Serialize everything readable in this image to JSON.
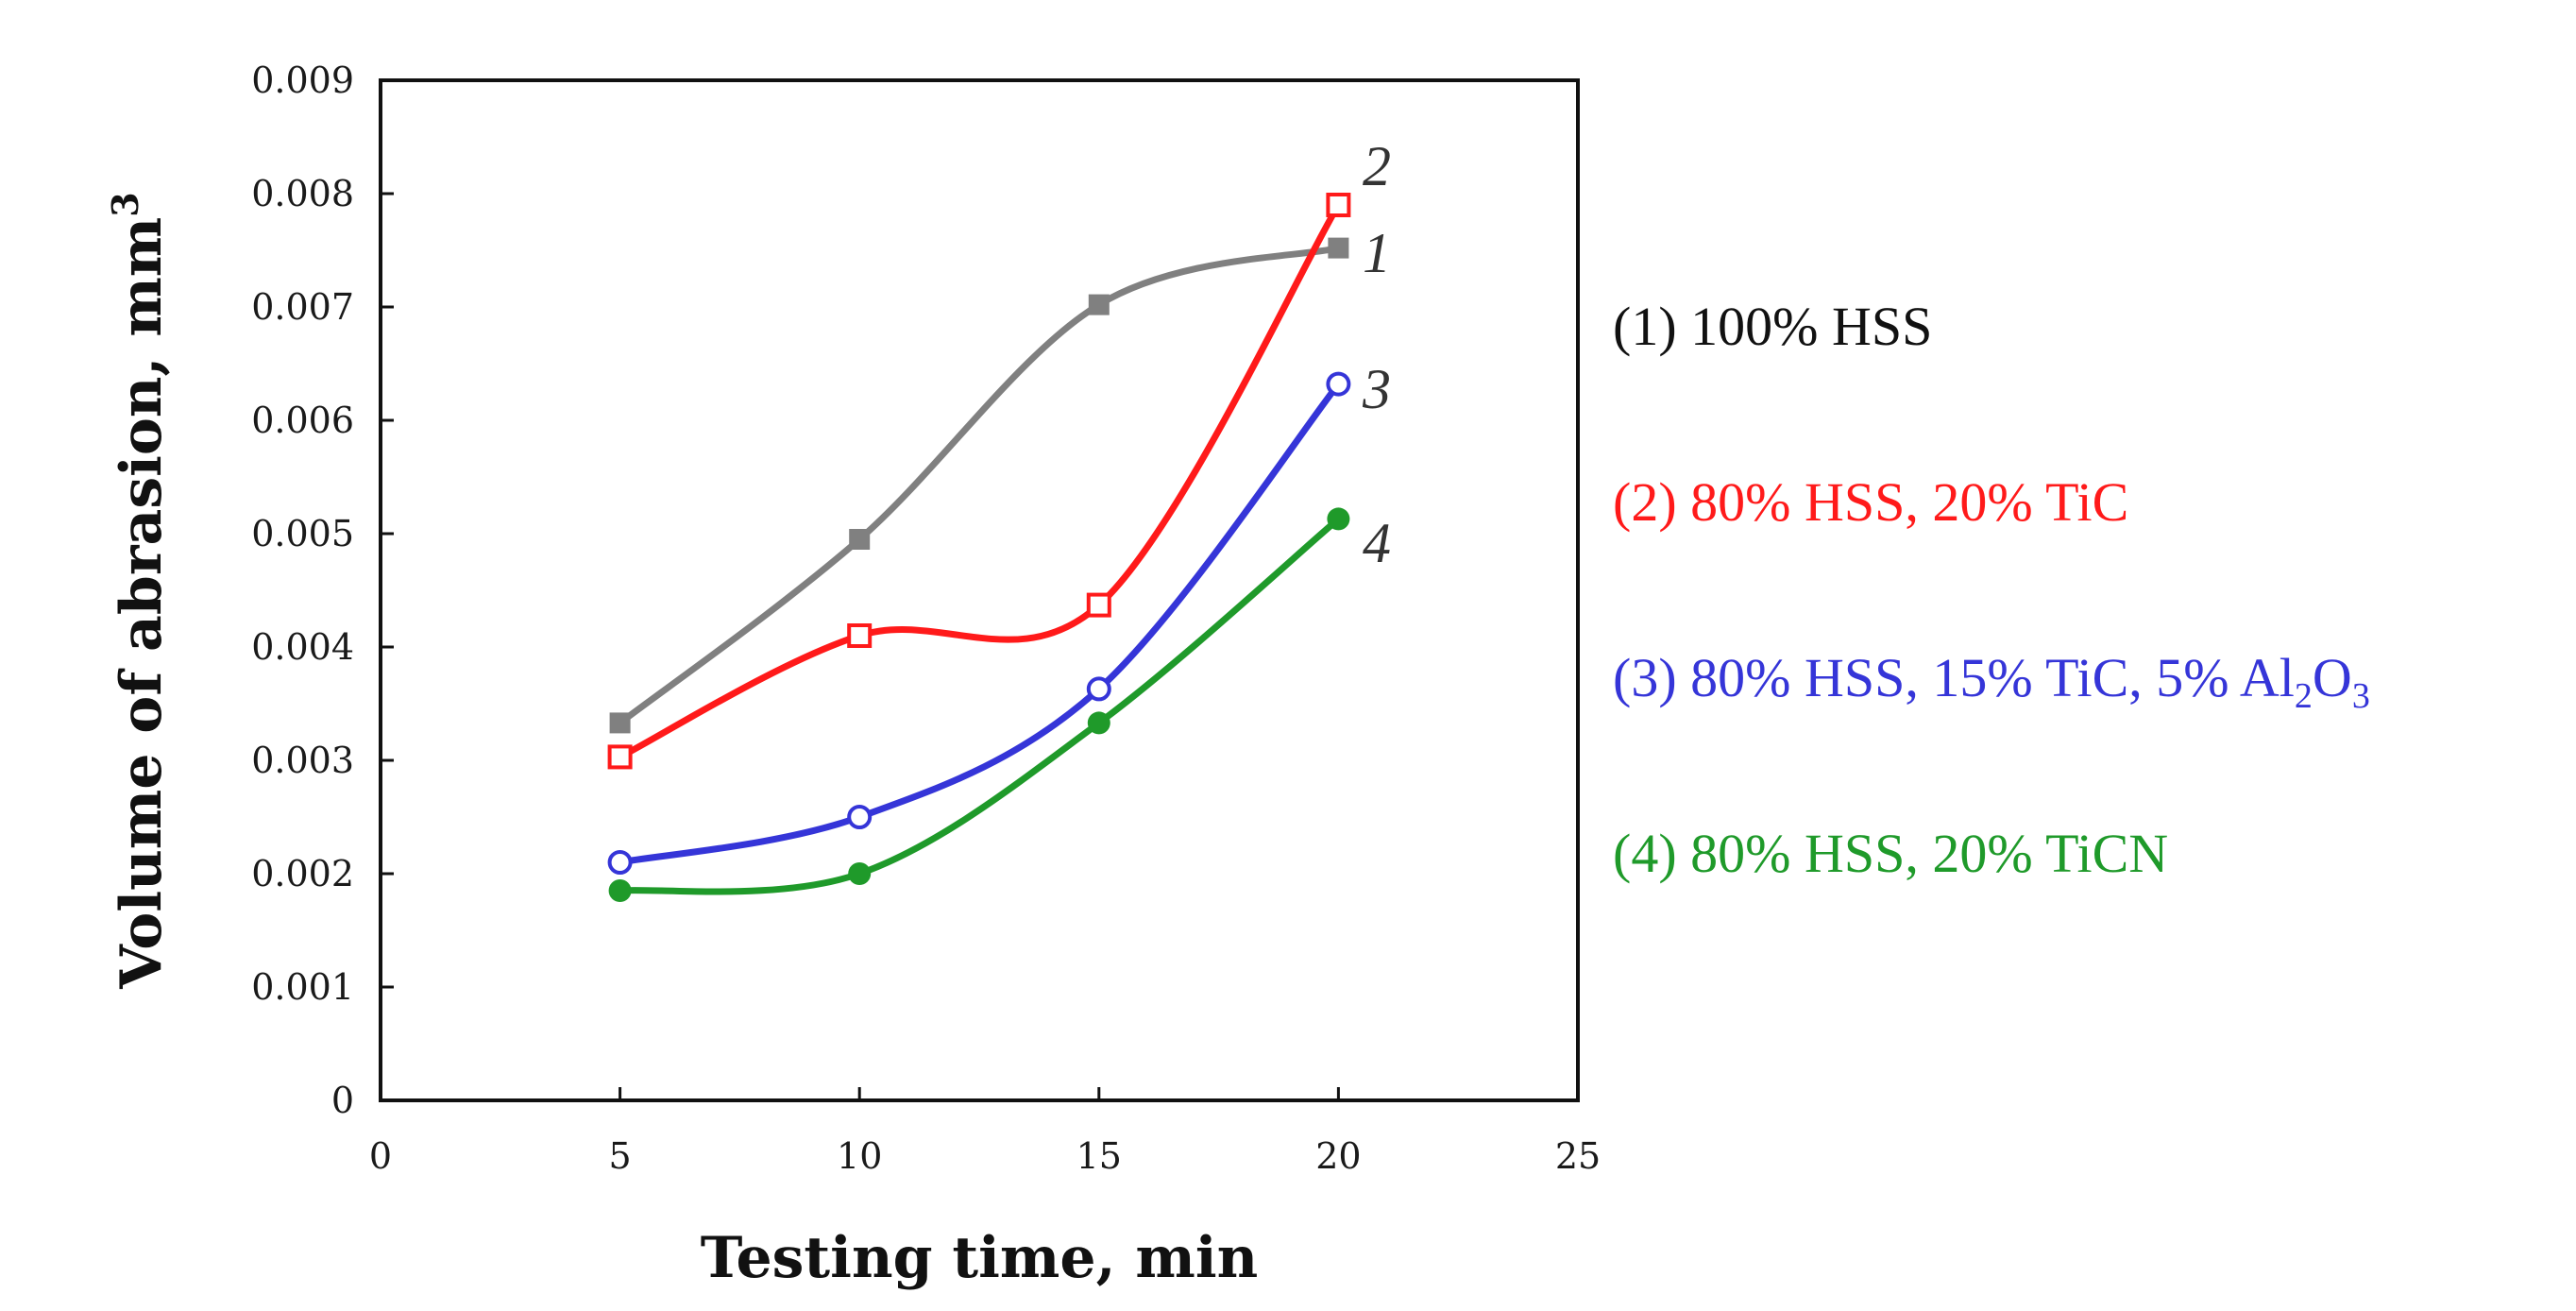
{
  "chart_data": {
    "type": "line",
    "title": "",
    "xlabel": "Testing time, min",
    "ylabel": "Volume of abrasion, mm",
    "ylabel_superscript": "3",
    "xlim": [
      0,
      25
    ],
    "ylim": [
      0,
      0.009
    ],
    "xticks": [
      0,
      5,
      10,
      15,
      20,
      25
    ],
    "yticks": [
      "0",
      "0.001",
      "0.002",
      "0.003",
      "0.004",
      "0.005",
      "0.006",
      "0.007",
      "0.008",
      "0.009"
    ],
    "grid": false,
    "legend_position": "right",
    "x": [
      5,
      10,
      15,
      20
    ],
    "series": [
      {
        "id": "1",
        "name": "(1) 100% HSS",
        "marker": "filled-square",
        "color": "#808080",
        "values": [
          0.00333,
          0.00495,
          0.00702,
          0.00752
        ]
      },
      {
        "id": "2",
        "name": "(2) 80% HSS, 20% TiC",
        "marker": "open-square",
        "color": "#ff1a1a",
        "values": [
          0.00303,
          0.0041,
          0.00437,
          0.0079
        ]
      },
      {
        "id": "3",
        "name": "(3) 80% HSS, 15% TiC, 5% Al2O3",
        "marker": "open-circle",
        "color": "#3535d8",
        "values": [
          0.0021,
          0.0025,
          0.00363,
          0.00632
        ]
      },
      {
        "id": "4",
        "name": "(4) 80% HSS, 20% TiCN",
        "marker": "filled-circle",
        "color": "#1f9a2a",
        "values": [
          0.00185,
          0.002,
          0.00333,
          0.00513
        ]
      }
    ]
  },
  "legend": {
    "s1": "(1) 100% HSS",
    "s2": "(2) 80% HSS, 20% TiC",
    "s3_prefix": "(3) 80% HSS, 15% TiC, 5% Al",
    "s3_sub1": "2",
    "s3_mid": "O",
    "s3_sub2": "3",
    "s4": "(4) 80% HSS, 20% TiCN"
  }
}
